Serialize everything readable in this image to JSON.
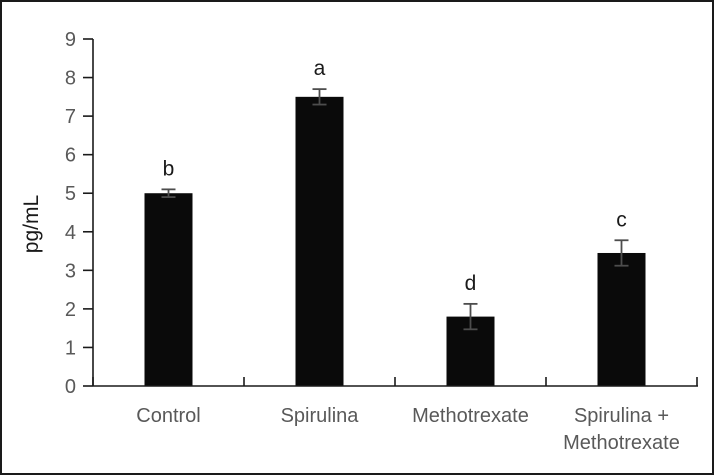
{
  "figure": {
    "background": "#ffffff",
    "border_color": "#1a1a1a"
  },
  "chart_data": {
    "type": "bar",
    "title": "",
    "xlabel": "",
    "ylabel": "pg/mL",
    "ylim": [
      0,
      9
    ],
    "ytick_step": 1,
    "ytick_labels": [
      "0",
      "1",
      "2",
      "3",
      "4",
      "5",
      "6",
      "7",
      "8",
      "9"
    ],
    "grid": false,
    "legend_position": "none",
    "categories": [
      "Control",
      "Spirulina",
      "Methotrexate",
      "Spirulina +\nMethotrexate"
    ],
    "series": [
      {
        "name": "pg/mL",
        "values": [
          5.0,
          7.5,
          1.8,
          3.45
        ],
        "errors": [
          0.1,
          0.2,
          0.33,
          0.33
        ],
        "sig_letters": [
          "b",
          "a",
          "d",
          "c"
        ]
      }
    ],
    "bar_color": "#0a0a0a",
    "error_bar_color": "#4d4d4d",
    "axis_color": "#1a1a1a",
    "tick_label_color": "#595959",
    "category_label_color": "#595959",
    "letter_color": "#1a1a1a",
    "ylabel_color": "#1a1a1a"
  }
}
